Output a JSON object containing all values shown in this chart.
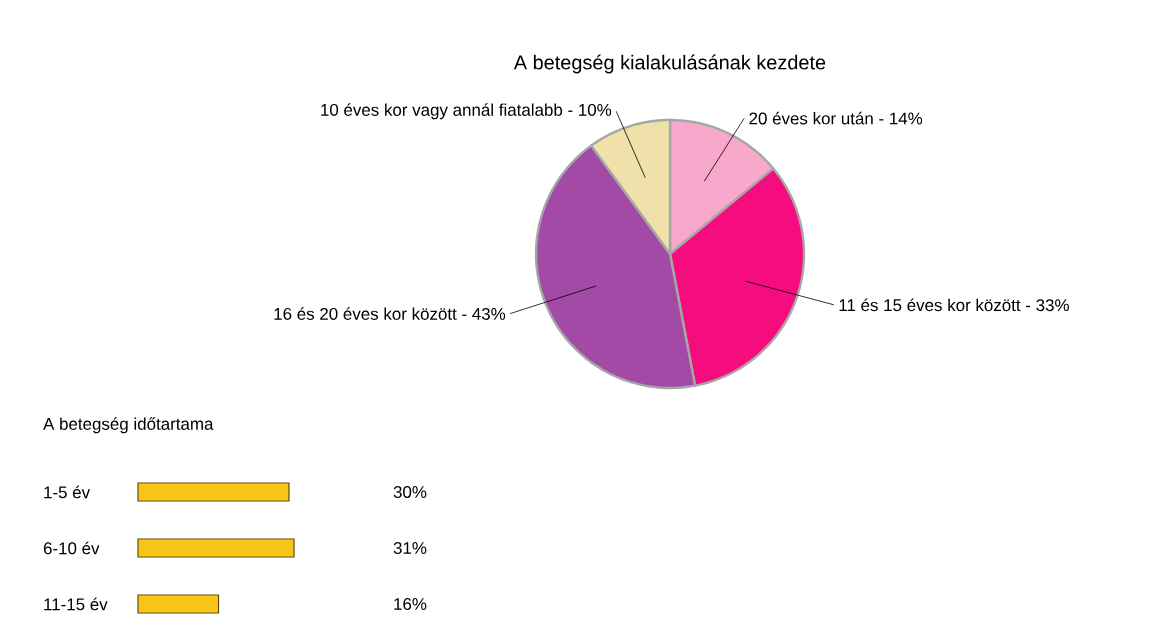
{
  "chart_data": [
    {
      "type": "pie",
      "title": "A betegség kialakulásának kezdete",
      "categories": [
        "20 éves kor után - 14%",
        "11 és 15 éves kor között - 33%",
        "16 és 20 éves kor között - 43%",
        "10 éves kor vagy annál fiatalabb - 10%"
      ],
      "values": [
        14,
        33,
        43,
        10
      ],
      "colors": [
        "#f7a8cb",
        "#f50c7f",
        "#a34aa6",
        "#efe1a9"
      ]
    },
    {
      "type": "bar",
      "orientation": "horizontal",
      "title": "A betegség időtartama",
      "categories": [
        "1-5 év",
        "6-10 év",
        "11-15 év"
      ],
      "values": [
        30,
        31,
        16
      ],
      "value_labels": [
        "30%",
        "31%",
        "16%"
      ],
      "color": "#f8c619"
    }
  ]
}
